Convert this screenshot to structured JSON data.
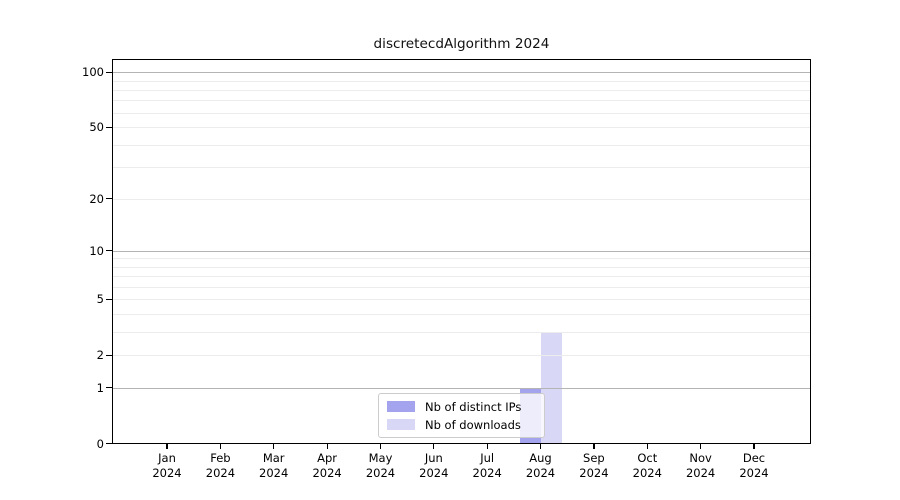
{
  "title": "discretecdAlgorithm 2024",
  "legend": {
    "items": [
      {
        "label": "Nb of distinct IPs",
        "color": "#a4a4ee"
      },
      {
        "label": "Nb of downloads",
        "color": "#d8d8f6"
      }
    ]
  },
  "chart_data": {
    "type": "bar",
    "title": "discretecdAlgorithm 2024",
    "categories": [
      "Jan 2024",
      "Feb 2024",
      "Mar 2024",
      "Apr 2024",
      "May 2024",
      "Jun 2024",
      "Jul 2024",
      "Aug 2024",
      "Sep 2024",
      "Oct 2024",
      "Nov 2024",
      "Dec 2024"
    ],
    "series": [
      {
        "name": "Nb of distinct IPs",
        "color": "#a4a4ee",
        "values": [
          0,
          0,
          0,
          0,
          0,
          0,
          0,
          1,
          0,
          0,
          0,
          0
        ]
      },
      {
        "name": "Nb of downloads",
        "color": "#d8d8f6",
        "values": [
          0,
          0,
          0,
          0,
          0,
          0,
          0,
          3,
          0,
          0,
          0,
          0
        ]
      }
    ],
    "xlabel": "",
    "ylabel": "",
    "y_scale": "log1p",
    "ylim": [
      0,
      117.8
    ],
    "y_ticks": [
      0,
      1,
      2,
      5,
      10,
      20,
      50,
      100
    ],
    "y_major_grid": [
      1,
      10,
      100
    ],
    "y_minor_grid": [
      3,
      4,
      6,
      7,
      8,
      9,
      30,
      40,
      60,
      70,
      80,
      90
    ],
    "grid": true,
    "legend_position": "bottom-center",
    "bar_color_text": "black",
    "frame_color": "#000000"
  }
}
